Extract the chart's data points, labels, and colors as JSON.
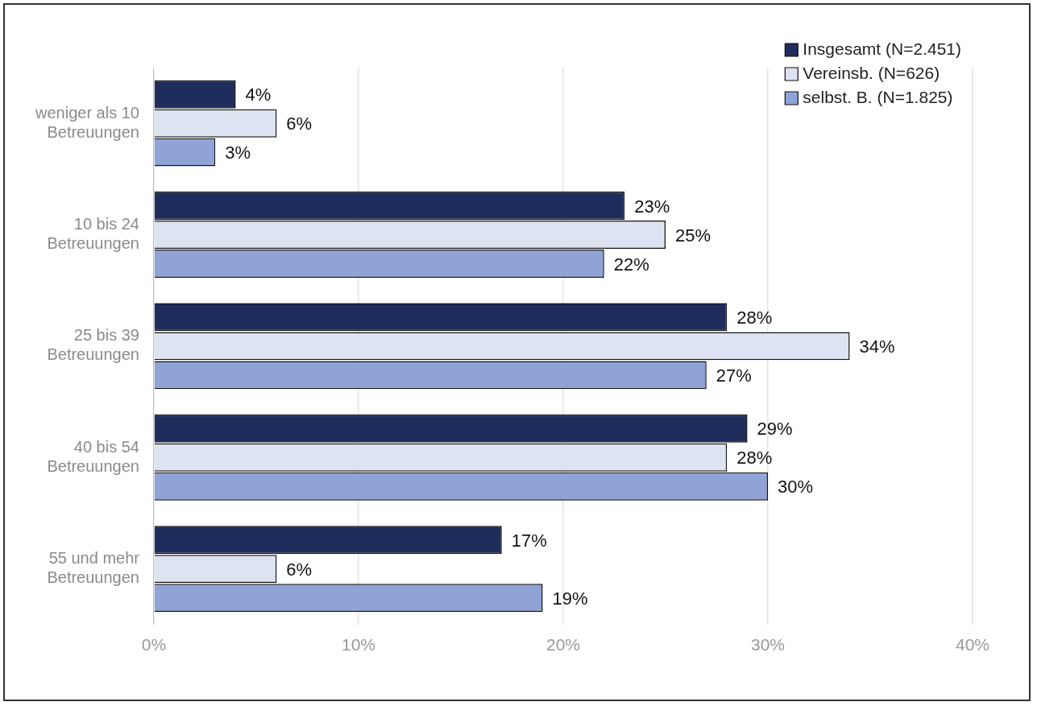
{
  "chart_data": {
    "type": "bar",
    "orientation": "horizontal",
    "categories": [
      "weniger als 10 Betreuungen",
      "10 bis 24 Betreuungen",
      "25 bis 39 Betreuungen",
      "40 bis 54 Betreuungen",
      "55 und mehr Betreuungen"
    ],
    "series": [
      {
        "name": "Insgesamt (N=2.451)",
        "color": "#1f2d5c",
        "values": [
          4,
          23,
          28,
          29,
          17
        ],
        "value_labels": [
          "4%",
          "23%",
          "28%",
          "29%",
          "17%"
        ]
      },
      {
        "name": "Vereinsb. (N=626)",
        "color": "#dde3f0",
        "values": [
          6,
          25,
          34,
          28,
          6
        ],
        "value_labels": [
          "6%",
          "25%",
          "34%",
          "28%",
          "6%"
        ]
      },
      {
        "name": "selbst. B. (N=1.825)",
        "color": "#8fa3d6",
        "values": [
          3,
          22,
          27,
          30,
          19
        ],
        "value_labels": [
          "3%",
          "22%",
          "27%",
          "30%",
          "19%"
        ]
      }
    ],
    "xlim": [
      0,
      40
    ],
    "xticks": [
      {
        "value": 0,
        "label": "0%"
      },
      {
        "value": 10,
        "label": "10%"
      },
      {
        "value": 20,
        "label": "20%"
      },
      {
        "value": 30,
        "label": "30%"
      },
      {
        "value": 40,
        "label": "40%"
      }
    ],
    "grid": "x",
    "legend": "top right"
  }
}
